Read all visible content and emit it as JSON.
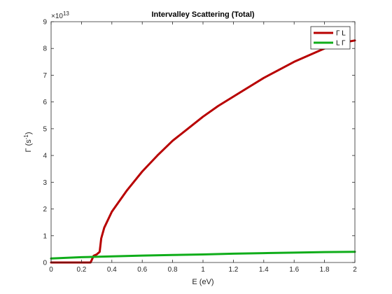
{
  "chart_data": {
    "type": "line",
    "title": "Intervalley Scattering (Total)",
    "xlabel": "E (eV)",
    "ylabel_base": "Γ (s",
    "ylabel_sup": "-1",
    "ylabel_end": ")",
    "y_exponent_base": "×10",
    "y_exponent_power": "13",
    "xlim": [
      0,
      2
    ],
    "ylim": [
      0,
      9
    ],
    "x_ticks": [
      0,
      0.2,
      0.4,
      0.6,
      0.8,
      1,
      1.2,
      1.4,
      1.6,
      1.8,
      2
    ],
    "x_tick_labels": [
      "0",
      "0.2",
      "0.4",
      "0.6",
      "0.8",
      "1",
      "1.2",
      "1.4",
      "1.6",
      "1.8",
      "2"
    ],
    "y_ticks": [
      0,
      1,
      2,
      3,
      4,
      5,
      6,
      7,
      8,
      9
    ],
    "y_tick_labels": [
      "0",
      "1",
      "2",
      "3",
      "4",
      "5",
      "6",
      "7",
      "8",
      "9"
    ],
    "grid": false,
    "legend_position": "top-right",
    "series": [
      {
        "name": "Γ  L",
        "color": "#b80000",
        "x": [
          0,
          0.26,
          0.28,
          0.3,
          0.32,
          0.33,
          0.35,
          0.4,
          0.5,
          0.6,
          0.7,
          0.8,
          0.9,
          1.0,
          1.1,
          1.2,
          1.3,
          1.4,
          1.5,
          1.6,
          1.7,
          1.8,
          1.9,
          2.0
        ],
        "y": [
          0,
          0,
          0.25,
          0.3,
          0.4,
          0.9,
          1.3,
          1.9,
          2.7,
          3.4,
          4.0,
          4.55,
          5.0,
          5.45,
          5.85,
          6.2,
          6.55,
          6.9,
          7.2,
          7.5,
          7.75,
          8.0,
          8.2,
          8.3
        ]
      },
      {
        "name": "L  Γ",
        "color": "#0fad1a",
        "x": [
          0,
          0.2,
          0.4,
          0.6,
          0.8,
          1.0,
          1.2,
          1.4,
          1.6,
          1.8,
          2.0
        ],
        "y": [
          0.15,
          0.2,
          0.23,
          0.26,
          0.28,
          0.3,
          0.33,
          0.35,
          0.37,
          0.39,
          0.4
        ]
      }
    ]
  }
}
